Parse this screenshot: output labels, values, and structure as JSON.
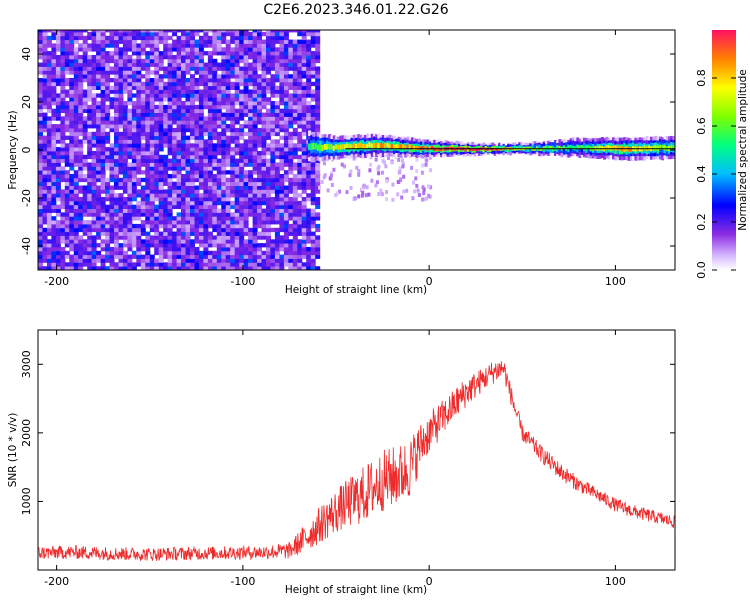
{
  "title": "C2E6.2023.346.01.22.G26",
  "chart_data": [
    {
      "type": "heatmap",
      "xlabel": "Height of straight line (km)",
      "ylabel": "Frequency (Hz)",
      "xlim": [
        -210,
        132
      ],
      "ylim": [
        -50,
        50
      ],
      "xticks": [
        "-200",
        "-100",
        "0",
        "100"
      ],
      "yticks": [
        "-40",
        "-20",
        "0",
        "20",
        "40"
      ],
      "noise_region": {
        "x_end": -60,
        "description_value": "scattered noise"
      },
      "signal_band": [
        {
          "x": -65,
          "freq_center": 1.5,
          "half_width": 4,
          "amplitude": 0.55
        },
        {
          "x": -50,
          "freq_center": 1.0,
          "half_width": 3,
          "amplitude": 0.75
        },
        {
          "x": -30,
          "freq_center": 2.0,
          "half_width": 3,
          "amplitude": 0.8
        },
        {
          "x": -10,
          "freq_center": 1.0,
          "half_width": 2.5,
          "amplitude": 0.85
        },
        {
          "x": 10,
          "freq_center": 0.5,
          "half_width": 2,
          "amplitude": 0.95
        },
        {
          "x": 30,
          "freq_center": 0.3,
          "half_width": 1.5,
          "amplitude": 1.0
        },
        {
          "x": 50,
          "freq_center": 0.5,
          "half_width": 1.5,
          "amplitude": 0.7
        },
        {
          "x": 80,
          "freq_center": 1.0,
          "half_width": 2.5,
          "amplitude": 0.55
        },
        {
          "x": 105,
          "freq_center": 0.5,
          "half_width": 3,
          "amplitude": 0.85
        },
        {
          "x": 132,
          "freq_center": 1.0,
          "half_width": 3,
          "amplitude": 0.6
        }
      ],
      "colorbar": {
        "label": "Normalized spectral amplitude",
        "ticks": [
          "0.0",
          "0.2",
          "0.4",
          "0.6",
          "0.8"
        ],
        "range": [
          0,
          1
        ]
      }
    },
    {
      "type": "line",
      "xlabel": "Height of straight line (km)",
      "ylabel": "SNR (10 * v/v)",
      "xlim": [
        -210,
        132
      ],
      "ylim": [
        0,
        3500
      ],
      "xticks": [
        "-200",
        "-100",
        "0",
        "100"
      ],
      "yticks": [
        "1000",
        "2000",
        "3000"
      ],
      "color": "#ee2a2a",
      "series": [
        {
          "x": [
            -210,
            -190,
            -170,
            -150,
            -130,
            -110,
            -90,
            -75,
            -65,
            -55,
            -45,
            -35,
            -25,
            -15,
            -10,
            -5,
            0,
            10,
            20,
            30,
            35,
            40,
            45,
            50,
            60,
            70,
            80,
            90,
            100,
            110,
            120,
            132
          ],
          "values": [
            250,
            260,
            240,
            230,
            240,
            250,
            260,
            280,
            500,
            750,
            950,
            1100,
            1300,
            1400,
            1500,
            1800,
            2000,
            2300,
            2600,
            2800,
            2900,
            2950,
            2450,
            2000,
            1700,
            1450,
            1250,
            1100,
            950,
            850,
            780,
            700
          ],
          "spread": [
            200,
            200,
            200,
            200,
            200,
            200,
            200,
            250,
            450,
            600,
            700,
            850,
            900,
            900,
            900,
            700,
            600,
            500,
            450,
            350,
            350,
            350,
            280,
            250,
            250,
            250,
            220,
            200,
            200,
            200,
            190,
            180
          ]
        }
      ]
    }
  ]
}
